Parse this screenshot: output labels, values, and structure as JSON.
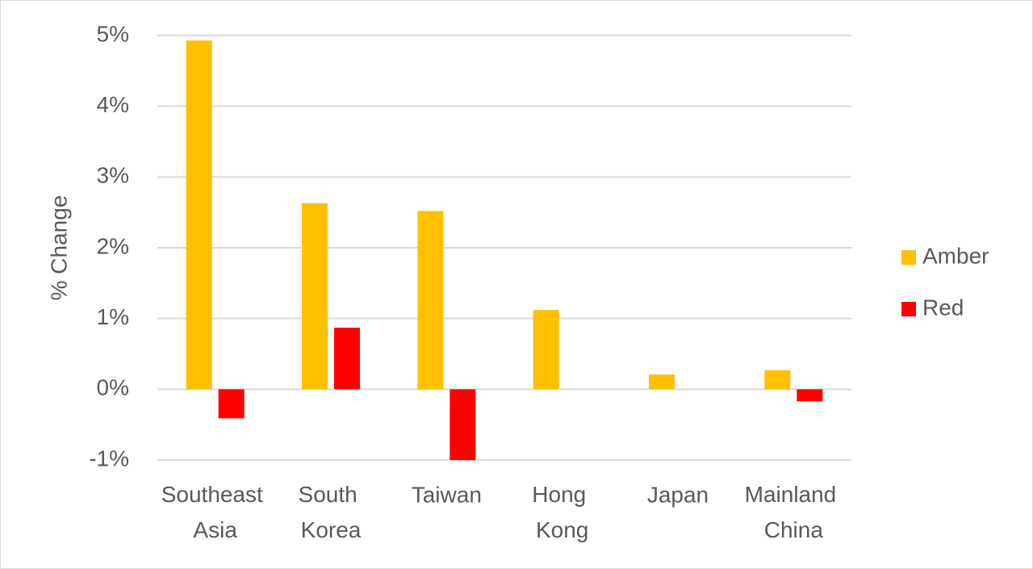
{
  "chart_data": {
    "type": "bar",
    "y_axis_label": "% Change",
    "categories": [
      "Southeast Asia",
      "South Korea",
      "Taiwan",
      "Hong Kong",
      "Japan",
      "Mainland China"
    ],
    "series": [
      {
        "name": "Amber",
        "color": "#ffc000",
        "values": [
          4.93,
          2.63,
          2.52,
          1.12,
          0.21,
          0.27
        ]
      },
      {
        "name": "Red",
        "color": "#ff0000",
        "values": [
          -0.41,
          0.87,
          -1.0,
          null,
          null,
          -0.17
        ]
      }
    ],
    "ylim": [
      -1,
      5
    ],
    "yticks": [
      {
        "value": -1,
        "label": "-1%"
      },
      {
        "value": 0,
        "label": "0%"
      },
      {
        "value": 1,
        "label": "1%"
      },
      {
        "value": 2,
        "label": "2%"
      },
      {
        "value": 3,
        "label": "3%"
      },
      {
        "value": 4,
        "label": "4%"
      },
      {
        "value": 5,
        "label": "5%"
      }
    ],
    "grid": true,
    "legend": "right"
  }
}
